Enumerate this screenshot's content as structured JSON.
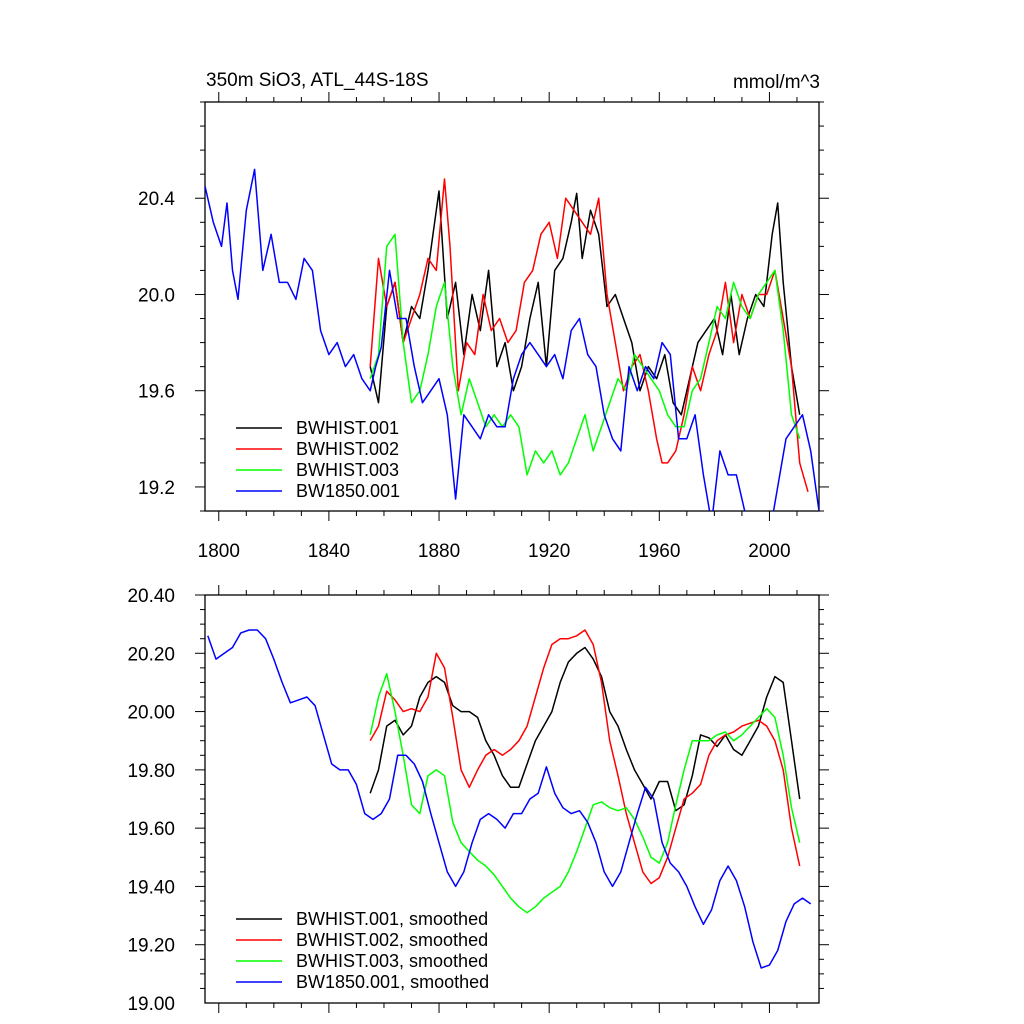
{
  "chart_data": [
    {
      "type": "line",
      "title": "350m SiO3, ATL_44S-18S",
      "units": "mmol/m^3",
      "xlim": [
        1795,
        2018
      ],
      "ylim": [
        19.1,
        20.8
      ],
      "x_ticks": [
        "1800",
        "1840",
        "1880",
        "1920",
        "1960",
        "2000"
      ],
      "x_tick_values": [
        1800,
        1840,
        1880,
        1920,
        1960,
        2000
      ],
      "y_ticks": [
        "19.2",
        "19.6",
        "20.0",
        "20.4"
      ],
      "y_tick_values": [
        19.2,
        19.6,
        20.0,
        20.4
      ],
      "legend_position": "bottom-left",
      "series": [
        {
          "name": "BWHIST.001",
          "color": "#000000",
          "x": [
            1855,
            1858,
            1861,
            1864,
            1867,
            1870,
            1873,
            1876,
            1879,
            1880,
            1883,
            1886,
            1889,
            1892,
            1895,
            1898,
            1901,
            1904,
            1907,
            1910,
            1913,
            1916,
            1919,
            1922,
            1925,
            1928,
            1930,
            1932,
            1935,
            1938,
            1941,
            1944,
            1947,
            1950,
            1953,
            1956,
            1959,
            1962,
            1965,
            1968,
            1971,
            1974,
            1977,
            1980,
            1983,
            1986,
            1989,
            1992,
            1995,
            1998,
            2001,
            2003,
            2005,
            2008,
            2011
          ],
          "values": [
            19.7,
            19.55,
            19.95,
            20.05,
            19.8,
            19.95,
            19.9,
            20.1,
            20.35,
            20.43,
            19.9,
            20.05,
            19.75,
            20.0,
            19.85,
            20.1,
            19.7,
            19.8,
            19.6,
            19.7,
            19.9,
            20.05,
            19.7,
            20.1,
            20.15,
            20.3,
            20.42,
            20.15,
            20.35,
            20.25,
            19.95,
            20.0,
            19.9,
            19.8,
            19.6,
            19.7,
            19.65,
            19.75,
            19.55,
            19.5,
            19.65,
            19.8,
            19.85,
            19.9,
            19.75,
            20.0,
            19.75,
            19.9,
            20.0,
            19.95,
            20.25,
            20.38,
            20.05,
            19.7,
            19.5
          ]
        },
        {
          "name": "BWHIST.002",
          "color": "#ff0000",
          "x": [
            1855,
            1858,
            1861,
            1864,
            1867,
            1870,
            1873,
            1876,
            1879,
            1882,
            1884,
            1887,
            1890,
            1893,
            1896,
            1899,
            1902,
            1905,
            1908,
            1911,
            1914,
            1917,
            1920,
            1923,
            1926,
            1929,
            1932,
            1935,
            1938,
            1941,
            1944,
            1947,
            1950,
            1953,
            1956,
            1959,
            1961,
            1963,
            1966,
            1969,
            1972,
            1975,
            1978,
            1981,
            1984,
            1987,
            1990,
            1993,
            1996,
            1999,
            2002,
            2005,
            2008,
            2011,
            2014
          ],
          "values": [
            19.7,
            20.15,
            19.95,
            20.05,
            19.8,
            19.9,
            20.0,
            20.15,
            20.1,
            20.48,
            20.2,
            19.6,
            19.8,
            19.75,
            20.0,
            19.85,
            19.9,
            19.8,
            19.85,
            20.05,
            20.1,
            20.25,
            20.3,
            20.15,
            20.4,
            20.35,
            20.3,
            20.25,
            20.4,
            20.0,
            19.8,
            19.6,
            19.7,
            19.75,
            19.6,
            19.4,
            19.3,
            19.3,
            19.35,
            19.5,
            19.7,
            19.6,
            19.75,
            19.85,
            20.05,
            19.8,
            20.0,
            19.9,
            20.0,
            20.0,
            20.1,
            19.9,
            19.7,
            19.3,
            19.18
          ]
        },
        {
          "name": "BWHIST.003",
          "color": "#00ff00",
          "x": [
            1855,
            1858,
            1861,
            1864,
            1867,
            1870,
            1873,
            1876,
            1879,
            1882,
            1885,
            1888,
            1891,
            1894,
            1897,
            1900,
            1903,
            1906,
            1909,
            1912,
            1915,
            1918,
            1921,
            1924,
            1927,
            1930,
            1933,
            1936,
            1939,
            1942,
            1945,
            1948,
            1951,
            1954,
            1957,
            1960,
            1963,
            1966,
            1969,
            1972,
            1975,
            1978,
            1981,
            1984,
            1987,
            1990,
            1993,
            1996,
            1999,
            2002,
            2005,
            2008,
            2011
          ],
          "values": [
            19.65,
            19.75,
            20.2,
            20.25,
            19.8,
            19.55,
            19.6,
            19.75,
            19.95,
            20.05,
            19.7,
            19.5,
            19.65,
            19.55,
            19.45,
            19.5,
            19.45,
            19.5,
            19.45,
            19.25,
            19.35,
            19.3,
            19.35,
            19.25,
            19.3,
            19.4,
            19.5,
            19.35,
            19.45,
            19.55,
            19.65,
            19.6,
            19.75,
            19.7,
            19.65,
            19.6,
            19.5,
            19.45,
            19.45,
            19.6,
            19.65,
            19.8,
            19.95,
            19.9,
            20.05,
            19.95,
            19.9,
            20.0,
            20.05,
            20.1,
            19.85,
            19.5,
            19.4
          ]
        },
        {
          "name": "BW1850.001",
          "color": "#0000ff",
          "x": [
            1795,
            1798,
            1801,
            1803,
            1805,
            1807,
            1810,
            1813,
            1816,
            1819,
            1822,
            1825,
            1828,
            1831,
            1834,
            1837,
            1840,
            1843,
            1846,
            1849,
            1852,
            1855,
            1857,
            1859,
            1862,
            1865,
            1868,
            1871,
            1874,
            1877,
            1880,
            1883,
            1886,
            1889,
            1892,
            1895,
            1898,
            1901,
            1904,
            1907,
            1910,
            1913,
            1916,
            1919,
            1922,
            1925,
            1928,
            1931,
            1934,
            1937,
            1940,
            1943,
            1946,
            1949,
            1952,
            1955,
            1958,
            1961,
            1964,
            1967,
            1970,
            1973,
            1976,
            1979,
            1982,
            1985,
            1988,
            1991,
            1994,
            1997,
            2000,
            2003,
            2006,
            2009,
            2012,
            2015,
            2018
          ],
          "values": [
            20.45,
            20.3,
            20.2,
            20.38,
            20.1,
            19.98,
            20.35,
            20.52,
            20.1,
            20.25,
            20.05,
            20.05,
            19.98,
            20.15,
            20.1,
            19.85,
            19.75,
            19.8,
            19.7,
            19.75,
            19.65,
            19.6,
            19.7,
            19.78,
            20.1,
            19.9,
            19.9,
            19.7,
            19.55,
            19.6,
            19.65,
            19.5,
            19.15,
            19.5,
            19.45,
            19.4,
            19.5,
            19.45,
            19.45,
            19.65,
            19.75,
            19.8,
            19.75,
            19.7,
            19.75,
            19.65,
            19.85,
            19.9,
            19.75,
            19.7,
            19.5,
            19.4,
            19.35,
            19.7,
            19.6,
            19.7,
            19.65,
            19.8,
            19.75,
            19.4,
            19.4,
            19.5,
            19.25,
            19.05,
            19.35,
            19.25,
            19.25,
            19.1,
            19.0,
            19.05,
            19.0,
            19.2,
            19.4,
            19.45,
            19.5,
            19.35,
            19.1
          ]
        }
      ]
    },
    {
      "type": "line",
      "title": "",
      "xlim": [
        1795,
        2018
      ],
      "ylim": [
        19.0,
        20.4
      ],
      "x_tick_values": [
        1800,
        1840,
        1880,
        1920,
        1960,
        2000
      ],
      "y_ticks": [
        "20.40",
        "20.20",
        "20.00",
        "19.80",
        "19.60",
        "19.40",
        "19.20",
        "19.00"
      ],
      "y_tick_values": [
        20.4,
        20.2,
        20.0,
        19.8,
        19.6,
        19.4,
        19.2,
        19.0
      ],
      "legend_position": "bottom-left",
      "series": [
        {
          "name": "BWHIST.001, smoothed",
          "color": "#000000",
          "x": [
            1855,
            1858,
            1861,
            1864,
            1867,
            1870,
            1873,
            1876,
            1879,
            1882,
            1885,
            1888,
            1891,
            1894,
            1897,
            1900,
            1903,
            1906,
            1909,
            1912,
            1915,
            1918,
            1921,
            1924,
            1927,
            1930,
            1933,
            1936,
            1939,
            1942,
            1945,
            1948,
            1951,
            1954,
            1957,
            1960,
            1963,
            1966,
            1969,
            1972,
            1975,
            1978,
            1981,
            1984,
            1987,
            1990,
            1993,
            1996,
            1999,
            2002,
            2005,
            2008,
            2011
          ],
          "values": [
            19.72,
            19.8,
            19.95,
            19.97,
            19.92,
            19.95,
            20.05,
            20.1,
            20.12,
            20.1,
            20.02,
            20.0,
            20.0,
            19.98,
            19.9,
            19.85,
            19.78,
            19.74,
            19.74,
            19.82,
            19.9,
            19.95,
            20.0,
            20.1,
            20.17,
            20.2,
            20.22,
            20.18,
            20.12,
            20.0,
            19.95,
            19.87,
            19.8,
            19.75,
            19.7,
            19.76,
            19.76,
            19.66,
            19.68,
            19.78,
            19.92,
            19.91,
            19.88,
            19.92,
            19.87,
            19.85,
            19.9,
            19.95,
            20.05,
            20.12,
            20.1,
            19.9,
            19.7
          ]
        },
        {
          "name": "BWHIST.002, smoothed",
          "color": "#ff0000",
          "x": [
            1855,
            1858,
            1861,
            1864,
            1867,
            1870,
            1873,
            1876,
            1879,
            1882,
            1885,
            1888,
            1891,
            1894,
            1897,
            1900,
            1903,
            1906,
            1909,
            1912,
            1915,
            1918,
            1921,
            1924,
            1927,
            1930,
            1933,
            1936,
            1939,
            1942,
            1945,
            1948,
            1951,
            1954,
            1957,
            1960,
            1963,
            1966,
            1969,
            1972,
            1975,
            1978,
            1981,
            1984,
            1987,
            1990,
            1993,
            1996,
            1999,
            2002,
            2005,
            2008,
            2011
          ],
          "values": [
            19.9,
            19.95,
            20.07,
            20.04,
            20.0,
            20.01,
            20.0,
            20.05,
            20.2,
            20.15,
            19.98,
            19.8,
            19.74,
            19.8,
            19.85,
            19.87,
            19.85,
            19.87,
            19.9,
            19.95,
            20.05,
            20.15,
            20.23,
            20.25,
            20.25,
            20.26,
            20.28,
            20.23,
            20.1,
            19.9,
            19.78,
            19.65,
            19.55,
            19.45,
            19.41,
            19.43,
            19.5,
            19.6,
            19.7,
            19.72,
            19.75,
            19.85,
            19.9,
            19.92,
            19.93,
            19.95,
            19.96,
            19.97,
            19.95,
            19.9,
            19.8,
            19.6,
            19.47
          ]
        },
        {
          "name": "BWHIST.003, smoothed",
          "color": "#00ff00",
          "x": [
            1855,
            1858,
            1861,
            1864,
            1867,
            1870,
            1873,
            1876,
            1879,
            1882,
            1885,
            1888,
            1891,
            1894,
            1897,
            1900,
            1903,
            1906,
            1909,
            1912,
            1915,
            1918,
            1921,
            1924,
            1927,
            1930,
            1933,
            1936,
            1939,
            1942,
            1945,
            1948,
            1951,
            1954,
            1957,
            1960,
            1963,
            1966,
            1969,
            1972,
            1975,
            1978,
            1981,
            1984,
            1987,
            1990,
            1993,
            1996,
            1999,
            2002,
            2005,
            2008,
            2011
          ],
          "values": [
            19.92,
            20.05,
            20.13,
            20.0,
            19.85,
            19.68,
            19.65,
            19.78,
            19.8,
            19.78,
            19.62,
            19.55,
            19.52,
            19.49,
            19.47,
            19.44,
            19.4,
            19.36,
            19.33,
            19.31,
            19.33,
            19.36,
            19.38,
            19.4,
            19.45,
            19.52,
            19.6,
            19.68,
            19.69,
            19.67,
            19.66,
            19.67,
            19.63,
            19.57,
            19.5,
            19.48,
            19.55,
            19.68,
            19.8,
            19.9,
            19.9,
            19.9,
            19.92,
            19.93,
            19.9,
            19.92,
            19.95,
            19.98,
            20.01,
            19.98,
            19.85,
            19.67,
            19.55
          ]
        },
        {
          "name": "BW1850.001, smoothed",
          "color": "#0000ff",
          "x": [
            1796,
            1799,
            1802,
            1805,
            1808,
            1811,
            1814,
            1817,
            1820,
            1823,
            1826,
            1829,
            1832,
            1835,
            1838,
            1841,
            1844,
            1847,
            1850,
            1853,
            1856,
            1859,
            1862,
            1865,
            1868,
            1871,
            1874,
            1877,
            1880,
            1883,
            1886,
            1889,
            1892,
            1895,
            1898,
            1901,
            1904,
            1907,
            1910,
            1913,
            1916,
            1919,
            1922,
            1925,
            1928,
            1931,
            1934,
            1937,
            1940,
            1943,
            1946,
            1949,
            1952,
            1955,
            1958,
            1961,
            1964,
            1967,
            1970,
            1973,
            1976,
            1979,
            1982,
            1985,
            1988,
            1991,
            1994,
            1997,
            2000,
            2003,
            2006,
            2009,
            2012,
            2015
          ],
          "values": [
            20.26,
            20.18,
            20.2,
            20.22,
            20.27,
            20.28,
            20.28,
            20.25,
            20.18,
            20.1,
            20.03,
            20.04,
            20.05,
            20.02,
            19.92,
            19.82,
            19.8,
            19.8,
            19.75,
            19.65,
            19.63,
            19.65,
            19.7,
            19.85,
            19.85,
            19.82,
            19.76,
            19.65,
            19.55,
            19.45,
            19.4,
            19.45,
            19.55,
            19.63,
            19.65,
            19.63,
            19.6,
            19.65,
            19.65,
            19.7,
            19.72,
            19.81,
            19.72,
            19.67,
            19.65,
            19.66,
            19.62,
            19.55,
            19.45,
            19.4,
            19.45,
            19.55,
            19.65,
            19.74,
            19.7,
            19.55,
            19.48,
            19.45,
            19.4,
            19.33,
            19.27,
            19.32,
            19.42,
            19.47,
            19.42,
            19.33,
            19.21,
            19.12,
            19.13,
            19.18,
            19.28,
            19.34,
            19.36,
            19.34
          ]
        }
      ]
    }
  ]
}
